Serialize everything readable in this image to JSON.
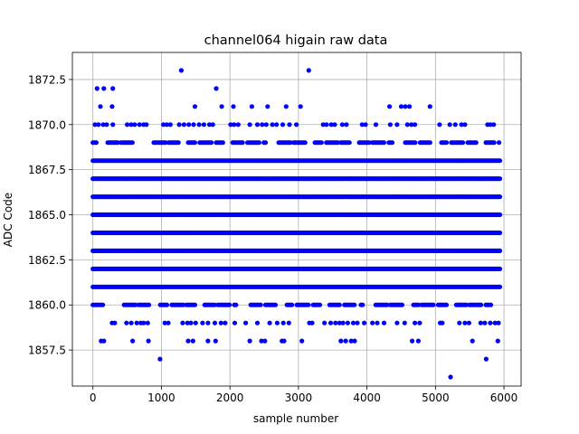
{
  "chart_data": {
    "type": "scatter",
    "title": "channel064 higain raw data",
    "xlabel": "sample number",
    "ylabel": "ADC Code",
    "xlim": [
      -300,
      6250
    ],
    "ylim": [
      1855.5,
      1874.0
    ],
    "xticks": [
      0,
      1000,
      2000,
      3000,
      4000,
      5000,
      6000
    ],
    "xtick_labels": [
      "0",
      "1000",
      "2000",
      "3000",
      "4000",
      "5000",
      "6000"
    ],
    "yticks": [
      1857.5,
      1860.0,
      1862.5,
      1865.0,
      1867.5,
      1870.0,
      1872.5
    ],
    "ytick_labels": [
      "1857.5",
      "1860.0",
      "1862.5",
      "1865.0",
      "1867.5",
      "1870.0",
      "1872.5"
    ],
    "grid": true,
    "marker_color": "#0000ff",
    "n_samples": 5950,
    "dense_levels": [
      1861,
      1862,
      1863,
      1864,
      1865,
      1866,
      1867,
      1868
    ],
    "moderate_levels": [
      1860,
      1869
    ],
    "sparse_levels": [
      {
        "y": 1859,
        "x": [
          280,
          320,
          490,
          560,
          640,
          700,
          740,
          800,
          1050,
          1100,
          1310,
          1380,
          1430,
          1500,
          1600,
          1680,
          1780,
          1870,
          1930,
          2070,
          2230,
          2400,
          2580,
          2690,
          2780,
          2860,
          3160,
          3200,
          3380,
          3470,
          3540,
          3600,
          3650,
          3720,
          3800,
          3860,
          3960,
          4080,
          4150,
          4250,
          4440,
          4550,
          4700,
          4770,
          5070,
          5100,
          5350,
          5430,
          5490,
          5660,
          5720,
          5800,
          5870,
          5920
        ]
      },
      {
        "y": 1870,
        "x": [
          30,
          80,
          150,
          200,
          290,
          500,
          560,
          610,
          680,
          740,
          780,
          1030,
          1080,
          1130,
          1260,
          1330,
          1400,
          1470,
          1550,
          1620,
          1700,
          1750,
          2010,
          2060,
          2120,
          2290,
          2400,
          2470,
          2530,
          2620,
          2680,
          2770,
          2870,
          2970,
          3360,
          3410,
          3480,
          3530,
          3640,
          3700,
          3930,
          3980,
          4130,
          4340,
          4440,
          4590,
          4650,
          4700,
          5060,
          5210,
          5290,
          5380,
          5430,
          5760,
          5800,
          5850
        ]
      },
      {
        "y": 1871,
        "x": [
          110,
          280,
          1490,
          1880,
          2050,
          2320,
          2550,
          2820,
          3030,
          4330,
          4500,
          4560,
          4620,
          4920
        ]
      },
      {
        "y": 1872,
        "x": [
          60,
          160,
          290,
          1800
        ]
      },
      {
        "y": 1873,
        "x": [
          1290,
          3150
        ]
      },
      {
        "y": 1858,
        "x": [
          120,
          160,
          580,
          810,
          1390,
          1460,
          1680,
          1790,
          2290,
          2460,
          2510,
          2760,
          2790,
          3050,
          3620,
          3690,
          3770,
          3820,
          4660,
          4750,
          5540,
          5910
        ]
      },
      {
        "y": 1857,
        "x": [
          980,
          5740
        ]
      },
      {
        "y": 1856,
        "x": [
          5220
        ]
      }
    ]
  }
}
